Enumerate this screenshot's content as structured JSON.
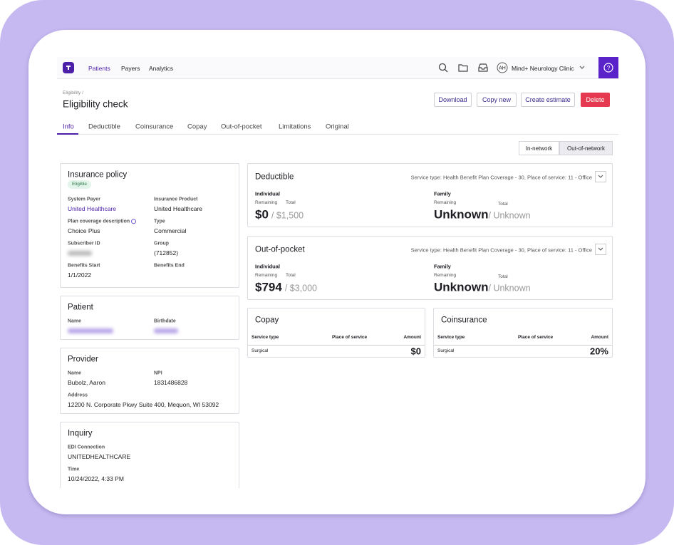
{
  "nav": {
    "links": [
      "Patients",
      "Payers",
      "Analytics"
    ],
    "avatar": "AH",
    "clinic": "Mind+ Neurology Clinic"
  },
  "header": {
    "breadcrumb": "Eligibility /",
    "title": "Eligibility check",
    "actions": [
      "Download",
      "Copy new",
      "Create estimate",
      "Delete"
    ]
  },
  "tabs": [
    "Info",
    "Deductible",
    "Coinsurance",
    "Copay",
    "Out-of-pocket",
    "Limitations",
    "Original"
  ],
  "network": [
    "In-network",
    "Out-of-network"
  ],
  "info_cards": [
    {
      "title": "Insurance policy",
      "badge": "Eligible",
      "fields": [
        {
          "label": "System Payer",
          "value": "United Healthcare"
        },
        {
          "label": "Insurance Product",
          "value": "United Healthcare"
        },
        {
          "label": "Plan coverage description",
          "value": "Choice Plus"
        },
        {
          "label": "Type",
          "value": "Commercial"
        },
        {
          "label": "Subscriber ID",
          "blurred": true
        },
        {
          "label": "Group",
          "value": "(712852)"
        },
        {
          "label": "Benefits Start",
          "value": "1/1/2022"
        },
        {
          "label": "Benefits End"
        }
      ]
    },
    {
      "title": "Patient",
      "fields": [
        {
          "label": "Name",
          "blurred": true
        },
        {
          "label": "Birthdate",
          "blurred": true
        }
      ]
    },
    {
      "title": "Provider",
      "fields": [
        {
          "label": "Name",
          "value": "Bubolz, Aaron"
        },
        {
          "label": "NPI",
          "value": "1831486828"
        },
        {
          "label": "Address",
          "value": "12200 N. Corporate Pkwy Suite 400, Mequon, WI 53092"
        }
      ]
    },
    {
      "title": "Inquiry",
      "columns": 1,
      "fields": [
        {
          "label": "EDI Connection",
          "value": "UNITEDHEALTHCARE"
        },
        {
          "label": "Time",
          "value": "10/24/2022, 4:33 PM"
        }
      ]
    }
  ],
  "benefit_cards": [
    {
      "title": "Deductible",
      "service": "Service type: Health Benefit Plan Coverage - 30, Place of service: 11 - Office",
      "groups": [
        {
          "label": "Individual",
          "remaining_label": "Remaining",
          "total_label": "Total",
          "remaining": "$0",
          "total": "/ $1,500"
        },
        {
          "label": "Family",
          "remaining_label": "Remaining",
          "total_label": "Total",
          "remaining": "Unknown",
          "total": "/ Unknown"
        }
      ]
    },
    {
      "title": "Out-of-pocket",
      "service": "Service type: Health Benefit Plan Coverage - 30, Place of service: 11 - Office",
      "groups": [
        {
          "label": "Individual",
          "remaining_label": "Remaining",
          "total_label": "Total",
          "remaining": "$794",
          "total": "/ $3,000"
        },
        {
          "label": "Family",
          "remaining_label": "Remaining",
          "total_label": "Total",
          "remaining": "Unknown",
          "total": "/ Unknown"
        }
      ]
    }
  ],
  "table_cards": [
    {
      "title": "Copay",
      "headers": [
        "Service type",
        "Place of service",
        "Amount"
      ],
      "rows": [
        {
          "service_type": "Surgical",
          "amount": "$0"
        }
      ]
    },
    {
      "title": "Coinsurance",
      "headers": [
        "Service type",
        "Place of service",
        "Amount"
      ],
      "rows": [
        {
          "service_type": "Surgical",
          "amount": "20%"
        }
      ]
    }
  ]
}
